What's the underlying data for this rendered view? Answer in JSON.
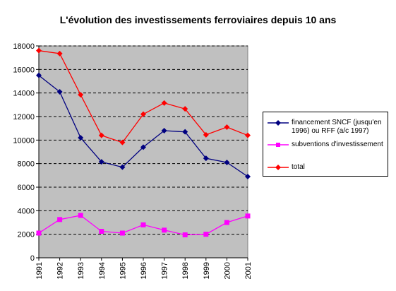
{
  "chart_data": {
    "type": "line",
    "title": "L'évolution des investissements ferroviaires depuis 10 ans",
    "categories": [
      "1991",
      "1992",
      "1993",
      "1994",
      "1995",
      "1996",
      "1997",
      "1998",
      "1999",
      "2000",
      "2001"
    ],
    "y_ticks": [
      "0",
      "2000",
      "4000",
      "6000",
      "8000",
      "10000",
      "12000",
      "14000",
      "16000",
      "18000"
    ],
    "ylim": [
      0,
      18000
    ],
    "grid": true,
    "legend_position": "right",
    "series": [
      {
        "name": "financement SNCF (jusqu'en 1996) ou RFF (a/c 1997)",
        "color": "#000080",
        "marker": "diamond",
        "values": [
          15500,
          14100,
          10200,
          8150,
          7700,
          9400,
          10800,
          10700,
          8450,
          8100,
          6900
        ]
      },
      {
        "name": "subventions d'investissement",
        "color": "#ff00ff",
        "marker": "square",
        "values": [
          2100,
          3250,
          3600,
          2250,
          2100,
          2800,
          2350,
          1950,
          2000,
          3000,
          3550
        ]
      },
      {
        "name": "total",
        "color": "#ff0000",
        "marker": "diamond",
        "values": [
          17600,
          17350,
          13850,
          10400,
          9800,
          12200,
          13150,
          12650,
          10450,
          11100,
          10400
        ]
      }
    ]
  },
  "legend": {
    "items": [
      {
        "line1": "financement SNCF (jusqu'en",
        "line2": "1996) ou RFF (a/c 1997)"
      },
      {
        "line1": "subventions d'investissement"
      },
      {
        "line1": "total"
      }
    ]
  }
}
